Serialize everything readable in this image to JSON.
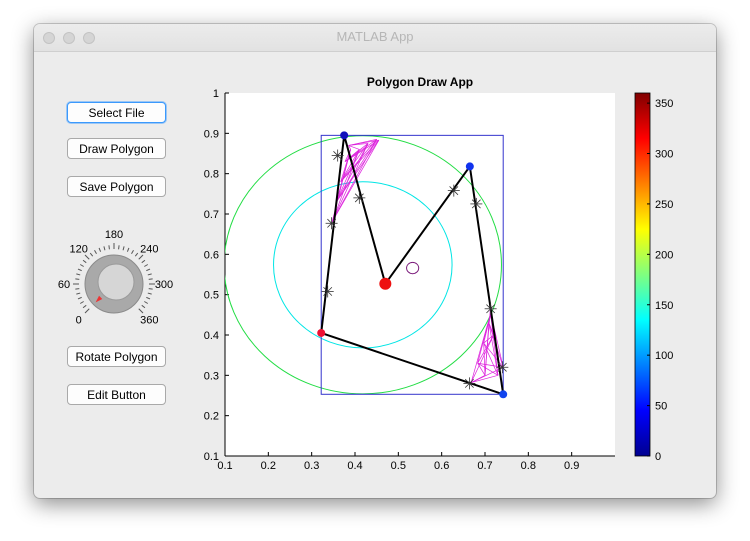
{
  "window": {
    "title": "MATLAB App"
  },
  "buttons": {
    "select_file": "Select File",
    "draw_polygon": "Draw Polygon",
    "save_polygon": "Save Polygon",
    "rotate_polygon": "Rotate Polygon",
    "edit_button": "Edit Button"
  },
  "knob": {
    "labels": [
      "0",
      "60",
      "120",
      "180",
      "240",
      "300",
      "360"
    ],
    "value": 0
  },
  "colors": {
    "window_bg": "#ececec",
    "bounding_box": "#3333cc",
    "outer_circle": "#22dd44",
    "inner_circle": "#00e5e5",
    "polygon": "#000000",
    "projection_lines": "#dd22dd",
    "centroid": "#ee1111",
    "knob_pointer": "#ee3333"
  },
  "chart_data": {
    "type": "scatter",
    "title": "Polygon Draw App",
    "xlabel": "",
    "ylabel": "",
    "xlim": [
      0.1,
      1.0
    ],
    "ylim": [
      0.1,
      1.0
    ],
    "xticks": [
      "0.1",
      "0.2",
      "0.3",
      "0.4",
      "0.5",
      "0.6",
      "0.7",
      "0.8",
      "0.9"
    ],
    "yticks": [
      "0.1",
      "0.2",
      "0.3",
      "0.4",
      "0.5",
      "0.6",
      "0.7",
      "0.8",
      "0.9",
      "1"
    ],
    "grid": false,
    "polygon": [
      [
        0.375,
        0.895
      ],
      [
        0.47,
        0.527
      ],
      [
        0.665,
        0.818
      ],
      [
        0.742,
        0.253
      ],
      [
        0.322,
        0.405
      ]
    ],
    "vertex_colors": [
      "#1111bb",
      "#ee1111",
      "#1133ee",
      "#1144ee",
      "#ee1133"
    ],
    "centroid": [
      0.47,
      0.527
    ],
    "small_circle": {
      "center": [
        0.533,
        0.566
      ],
      "r": 0.014
    },
    "bounding_box": {
      "x": [
        0.322,
        0.742
      ],
      "y": [
        0.253,
        0.895
      ]
    },
    "outer_circle": {
      "center": [
        0.418,
        0.574
      ],
      "r": 0.32
    },
    "inner_circle": {
      "center": [
        0.418,
        0.574
      ],
      "r": 0.206
    },
    "star_markers": [
      [
        0.36,
        0.845
      ],
      [
        0.41,
        0.74
      ],
      [
        0.346,
        0.677
      ],
      [
        0.337,
        0.508
      ],
      [
        0.628,
        0.758
      ],
      [
        0.68,
        0.725
      ],
      [
        0.713,
        0.465
      ],
      [
        0.74,
        0.32
      ],
      [
        0.664,
        0.28
      ]
    ],
    "hatch_regions": [
      {
        "fan_from": [
          [
            0.347,
            0.68
          ],
          [
            0.357,
            0.73
          ],
          [
            0.367,
            0.78
          ],
          [
            0.377,
            0.83
          ],
          [
            0.385,
            0.87
          ]
        ],
        "fan_to": [
          [
            0.39,
            0.86
          ],
          [
            0.41,
            0.86
          ],
          [
            0.43,
            0.875
          ],
          [
            0.45,
            0.885
          ],
          [
            0.455,
            0.883
          ]
        ]
      },
      {
        "fan_from": [
          [
            0.668,
            0.282
          ],
          [
            0.683,
            0.33
          ],
          [
            0.697,
            0.38
          ],
          [
            0.709,
            0.43
          ],
          [
            0.712,
            0.46
          ]
        ],
        "fan_to": [
          [
            0.7,
            0.3
          ],
          [
            0.73,
            0.3
          ],
          [
            0.742,
            0.32
          ],
          [
            0.72,
            0.4
          ],
          [
            0.716,
            0.465
          ]
        ]
      }
    ],
    "colorbar": {
      "range": [
        0,
        350
      ],
      "ticks": [
        "0",
        "50",
        "100",
        "150",
        "200",
        "250",
        "300",
        "350"
      ],
      "colormap": "jet"
    }
  }
}
